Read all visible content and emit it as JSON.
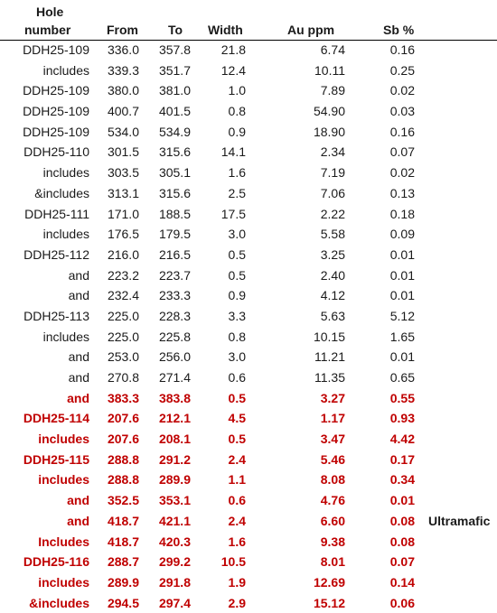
{
  "header": {
    "hole_line1": "Hole",
    "hole_line2": "number",
    "from": "From",
    "to": "To",
    "width": "Width",
    "au": "Au ppm",
    "sb": "Sb %"
  },
  "accent_color": "#c00000",
  "rows": [
    {
      "hole": "DDH25-109",
      "from": "336.0",
      "to": "357.8",
      "width": "21.8",
      "au": "6.74",
      "sb": "0.16",
      "note": "",
      "red": false
    },
    {
      "hole": "includes",
      "from": "339.3",
      "to": "351.7",
      "width": "12.4",
      "au": "10.11",
      "sb": "0.25",
      "note": "",
      "red": false
    },
    {
      "hole": "DDH25-109",
      "from": "380.0",
      "to": "381.0",
      "width": "1.0",
      "au": "7.89",
      "sb": "0.02",
      "note": "",
      "red": false
    },
    {
      "hole": "DDH25-109",
      "from": "400.7",
      "to": "401.5",
      "width": "0.8",
      "au": "54.90",
      "sb": "0.03",
      "note": "",
      "red": false
    },
    {
      "hole": "DDH25-109",
      "from": "534.0",
      "to": "534.9",
      "width": "0.9",
      "au": "18.90",
      "sb": "0.16",
      "note": "",
      "red": false
    },
    {
      "hole": "DDH25-110",
      "from": "301.5",
      "to": "315.6",
      "width": "14.1",
      "au": "2.34",
      "sb": "0.07",
      "note": "",
      "red": false
    },
    {
      "hole": "includes",
      "from": "303.5",
      "to": "305.1",
      "width": "1.6",
      "au": "7.19",
      "sb": "0.02",
      "note": "",
      "red": false
    },
    {
      "hole": "&includes",
      "from": "313.1",
      "to": "315.6",
      "width": "2.5",
      "au": "7.06",
      "sb": "0.13",
      "note": "",
      "red": false
    },
    {
      "hole": "DDH25-111",
      "from": "171.0",
      "to": "188.5",
      "width": "17.5",
      "au": "2.22",
      "sb": "0.18",
      "note": "",
      "red": false
    },
    {
      "hole": "includes",
      "from": "176.5",
      "to": "179.5",
      "width": "3.0",
      "au": "5.58",
      "sb": "0.09",
      "note": "",
      "red": false
    },
    {
      "hole": "DDH25-112",
      "from": "216.0",
      "to": "216.5",
      "width": "0.5",
      "au": "3.25",
      "sb": "0.01",
      "note": "",
      "red": false
    },
    {
      "hole": "and",
      "from": "223.2",
      "to": "223.7",
      "width": "0.5",
      "au": "2.40",
      "sb": "0.01",
      "note": "",
      "red": false
    },
    {
      "hole": "and",
      "from": "232.4",
      "to": "233.3",
      "width": "0.9",
      "au": "4.12",
      "sb": "0.01",
      "note": "",
      "red": false
    },
    {
      "hole": "DDH25-113",
      "from": "225.0",
      "to": "228.3",
      "width": "3.3",
      "au": "5.63",
      "sb": "5.12",
      "note": "",
      "red": false
    },
    {
      "hole": "includes",
      "from": "225.0",
      "to": "225.8",
      "width": "0.8",
      "au": "10.15",
      "sb": "1.65",
      "note": "",
      "red": false
    },
    {
      "hole": "and",
      "from": "253.0",
      "to": "256.0",
      "width": "3.0",
      "au": "11.21",
      "sb": "0.01",
      "note": "",
      "red": false
    },
    {
      "hole": "and",
      "from": "270.8",
      "to": "271.4",
      "width": "0.6",
      "au": "11.35",
      "sb": "0.65",
      "note": "",
      "red": false
    },
    {
      "hole": "and",
      "from": "383.3",
      "to": "383.8",
      "width": "0.5",
      "au": "3.27",
      "sb": "0.55",
      "note": "",
      "red": true
    },
    {
      "hole": "DDH25-114",
      "from": "207.6",
      "to": "212.1",
      "width": "4.5",
      "au": "1.17",
      "sb": "0.93",
      "note": "",
      "red": true
    },
    {
      "hole": "includes",
      "from": "207.6",
      "to": "208.1",
      "width": "0.5",
      "au": "3.47",
      "sb": "4.42",
      "note": "",
      "red": true
    },
    {
      "hole": "DDH25-115",
      "from": "288.8",
      "to": "291.2",
      "width": "2.4",
      "au": "5.46",
      "sb": "0.17",
      "note": "",
      "red": true
    },
    {
      "hole": "includes",
      "from": "288.8",
      "to": "289.9",
      "width": "1.1",
      "au": "8.08",
      "sb": "0.34",
      "note": "",
      "red": true
    },
    {
      "hole": "and",
      "from": "352.5",
      "to": "353.1",
      "width": "0.6",
      "au": "4.76",
      "sb": "0.01",
      "note": "",
      "red": true
    },
    {
      "hole": "and",
      "from": "418.7",
      "to": "421.1",
      "width": "2.4",
      "au": "6.60",
      "sb": "0.08",
      "note": "Ultramafic",
      "red": true
    },
    {
      "hole": "Includes",
      "from": "418.7",
      "to": "420.3",
      "width": "1.6",
      "au": "9.38",
      "sb": "0.08",
      "note": "",
      "red": true
    },
    {
      "hole": "DDH25-116",
      "from": "288.7",
      "to": "299.2",
      "width": "10.5",
      "au": "8.01",
      "sb": "0.07",
      "note": "",
      "red": true
    },
    {
      "hole": "includes",
      "from": "289.9",
      "to": "291.8",
      "width": "1.9",
      "au": "12.69",
      "sb": "0.14",
      "note": "",
      "red": true
    },
    {
      "hole": "&includes",
      "from": "294.5",
      "to": "297.4",
      "width": "2.9",
      "au": "15.12",
      "sb": "0.06",
      "note": "",
      "red": true
    }
  ]
}
